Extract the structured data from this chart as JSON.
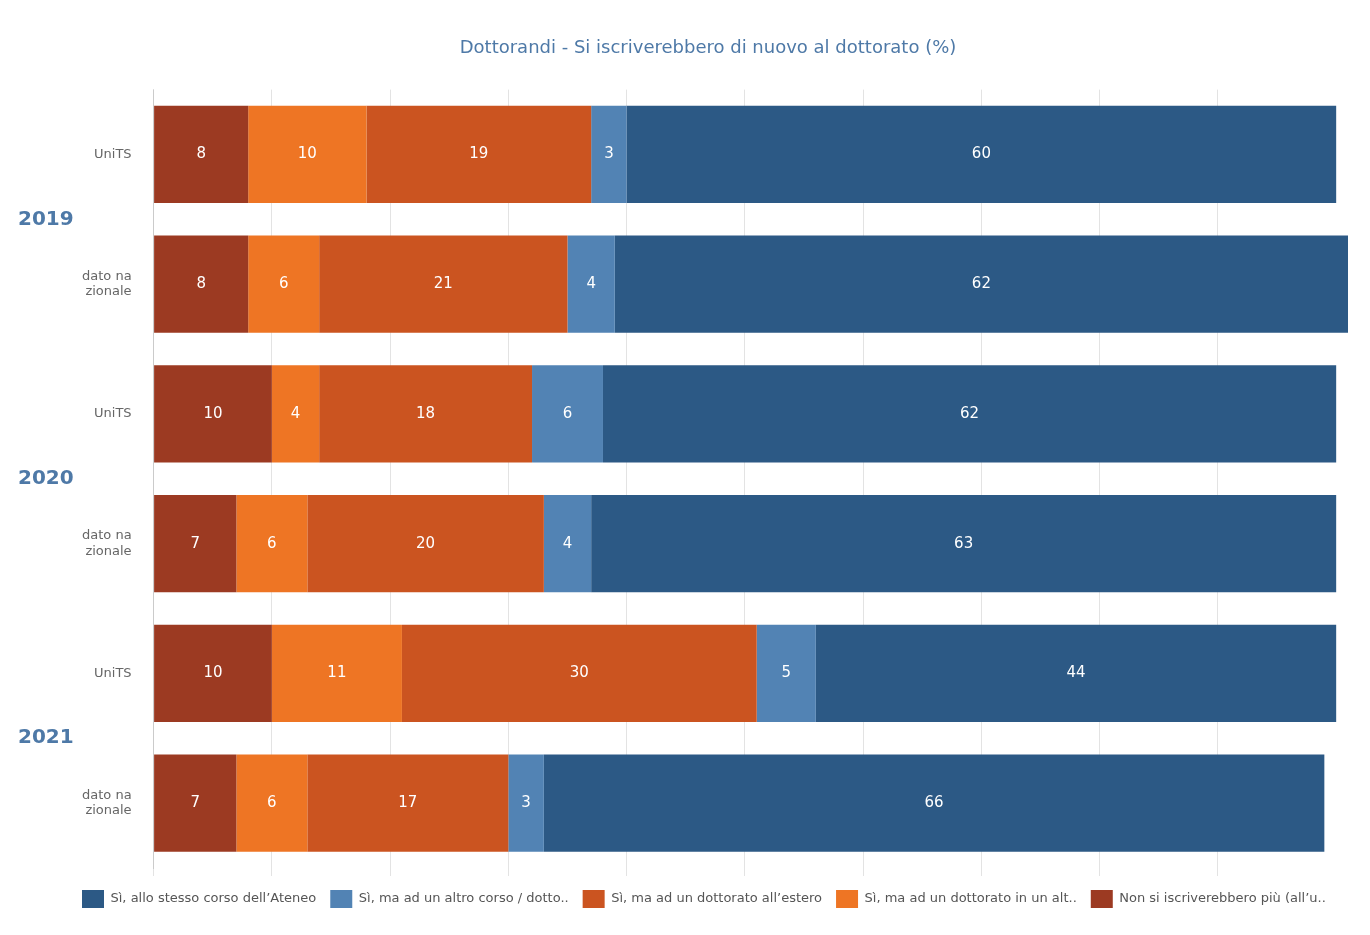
{
  "chart_data": {
    "type": "bar",
    "orientation": "horizontal",
    "stacked": true,
    "title": "Dottorandi - Si iscriverebbero di nuovo al dottorato (%)",
    "categories": [
      "UniTS",
      "dato na\nzionale",
      "UniTS",
      "dato na\nzionale",
      "UniTS",
      "dato na\nzionale"
    ],
    "annotations": [
      "2019",
      "2020",
      "2021"
    ],
    "series": [
      {
        "name": "Non si iscriverebbero più (all’u..",
        "color": "#9c3a22",
        "values": [
          8,
          8,
          10,
          7,
          10,
          7
        ]
      },
      {
        "name": "Sì, ma ad un dottorato in un alt..",
        "color": "#ee7524",
        "values": [
          10,
          6,
          4,
          6,
          11,
          6
        ]
      },
      {
        "name": "Sì, ma ad un dottorato all’estero",
        "color": "#cb5420",
        "values": [
          19,
          21,
          18,
          20,
          30,
          17
        ]
      },
      {
        "name": "Sì, ma ad un altro corso / dotto..",
        "color": "#5283b4",
        "values": [
          3,
          4,
          6,
          4,
          5,
          3
        ]
      },
      {
        "name": "Sì, allo stesso corso dell’Ateneo",
        "color": "#2c5985",
        "values": [
          60,
          62,
          62,
          63,
          44,
          66
        ]
      }
    ],
    "xlim": [
      0,
      101
    ],
    "xticks": [
      {
        "value": 0,
        "label": null
      },
      {
        "value": 10,
        "label": null
      },
      {
        "value": 20,
        "label": null
      },
      {
        "value": 30,
        "label": null
      },
      {
        "value": 40,
        "label": null
      },
      {
        "value": 50,
        "label": null
      },
      {
        "value": 60,
        "label": null
      },
      {
        "value": 70,
        "label": null
      },
      {
        "value": 80,
        "label": null
      },
      {
        "value": 90,
        "label": null
      }
    ],
    "grid": "x",
    "tick_labels": "y",
    "data_labels": true,
    "legend": "bottom left"
  }
}
